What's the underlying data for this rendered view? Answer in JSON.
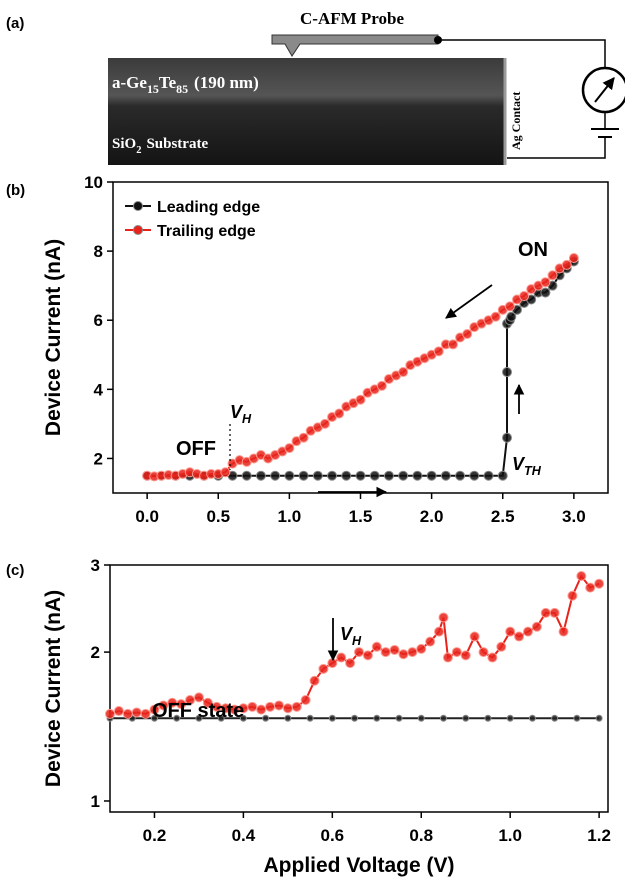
{
  "schematic": {
    "panel_label": "(a)",
    "probe_label": "C-AFM Probe",
    "film_label": [
      "a-Ge",
      "15",
      "Te",
      "85",
      "(190 nm)"
    ],
    "substrate_label": [
      "SiO",
      "2",
      "Substrate"
    ],
    "contact_label": "Ag Contact"
  },
  "chart_data": [
    {
      "type": "line",
      "panel_label": "(b)",
      "y_label": "Device Current (nA)",
      "xlim": [
        -0.24,
        3.24
      ],
      "ylim": [
        1.0,
        10
      ],
      "xticks": [
        {
          "value": 0,
          "label": "0.0"
        },
        0.5,
        {
          "value": 1,
          "label": "1.0"
        },
        1.5,
        {
          "value": 2,
          "label": "2.0"
        },
        2.5,
        {
          "value": 3,
          "label": "3.0"
        }
      ],
      "yticks": [
        2,
        4,
        6,
        8,
        10
      ],
      "legend": "upper left",
      "annotations": {
        "on": "ON",
        "off": "OFF",
        "vh": [
          "V",
          "H"
        ],
        "vth": [
          "V",
          "TH"
        ]
      },
      "series": [
        {
          "name": "Leading edge",
          "color": "#111111",
          "x": [
            0,
            0.1,
            0.2,
            0.3,
            0.4,
            0.5,
            0.6,
            0.7,
            0.8,
            0.9,
            1.0,
            1.1,
            1.2,
            1.3,
            1.4,
            1.5,
            1.6,
            1.7,
            1.8,
            1.9,
            2.0,
            2.1,
            2.2,
            2.3,
            2.4,
            2.5,
            2.53,
            2.53,
            2.53,
            2.55,
            2.56,
            2.6,
            2.65,
            2.7,
            2.75,
            2.8,
            2.85,
            2.9,
            2.95,
            3.0
          ],
          "values": [
            1.5,
            1.5,
            1.5,
            1.5,
            1.5,
            1.5,
            1.5,
            1.5,
            1.5,
            1.5,
            1.5,
            1.5,
            1.5,
            1.5,
            1.5,
            1.5,
            1.5,
            1.5,
            1.5,
            1.5,
            1.5,
            1.5,
            1.5,
            1.5,
            1.5,
            1.5,
            2.6,
            4.5,
            5.9,
            6.0,
            6.1,
            6.3,
            6.5,
            6.6,
            6.8,
            6.8,
            7.0,
            7.3,
            7.5,
            7.7
          ]
        },
        {
          "name": "Trailing edge",
          "color": "#e8231b",
          "x": [
            0,
            0.05,
            0.1,
            0.15,
            0.2,
            0.25,
            0.3,
            0.35,
            0.4,
            0.45,
            0.5,
            0.55,
            0.6,
            0.65,
            0.7,
            0.75,
            0.8,
            0.85,
            0.9,
            0.95,
            1.0,
            1.05,
            1.1,
            1.15,
            1.2,
            1.25,
            1.3,
            1.35,
            1.4,
            1.45,
            1.5,
            1.55,
            1.6,
            1.65,
            1.7,
            1.75,
            1.8,
            1.85,
            1.9,
            1.95,
            2.0,
            2.05,
            2.1,
            2.15,
            2.2,
            2.25,
            2.3,
            2.35,
            2.4,
            2.45,
            2.5,
            2.55,
            2.6,
            2.65,
            2.7,
            2.75,
            2.8,
            2.85,
            2.9,
            2.95,
            3.0
          ],
          "values": [
            1.5,
            1.48,
            1.5,
            1.52,
            1.5,
            1.55,
            1.6,
            1.55,
            1.5,
            1.55,
            1.55,
            1.6,
            1.85,
            1.95,
            1.9,
            2.0,
            2.1,
            2.0,
            2.1,
            2.2,
            2.3,
            2.5,
            2.6,
            2.8,
            2.9,
            3.0,
            3.2,
            3.3,
            3.5,
            3.6,
            3.7,
            3.9,
            4.0,
            4.1,
            4.3,
            4.4,
            4.5,
            4.7,
            4.8,
            4.9,
            5.0,
            5.1,
            5.3,
            5.3,
            5.5,
            5.6,
            5.8,
            5.9,
            6.0,
            6.1,
            6.3,
            6.4,
            6.6,
            6.7,
            6.9,
            7.0,
            7.1,
            7.3,
            7.5,
            7.6,
            7.8
          ]
        }
      ]
    },
    {
      "type": "line",
      "panel_label": "(c)",
      "x_label": "Applied Voltage (V)",
      "y_label": "Device Current (nA)",
      "xlim": [
        0.1,
        1.22
      ],
      "ylim": [
        0.95,
        3.0
      ],
      "ylog": true,
      "xticks": [
        0.2,
        0.4,
        0.6,
        0.8,
        {
          "value": 1,
          "label": "1.0"
        },
        1.2
      ],
      "yticks": [
        1,
        2,
        3
      ],
      "annotations": {
        "off_state": "OFF state",
        "vh": [
          "V",
          "H"
        ]
      },
      "series": [
        {
          "color": "#222222",
          "x": [
            0.1,
            0.15,
            0.2,
            0.25,
            0.3,
            0.35,
            0.4,
            0.45,
            0.5,
            0.55,
            0.6,
            0.65,
            0.7,
            0.75,
            0.8,
            0.85,
            0.9,
            0.95,
            1.0,
            1.05,
            1.1,
            1.15,
            1.2
          ],
          "values": [
            1.47,
            1.47,
            1.47,
            1.47,
            1.47,
            1.47,
            1.47,
            1.47,
            1.47,
            1.47,
            1.47,
            1.47,
            1.47,
            1.47,
            1.47,
            1.47,
            1.47,
            1.47,
            1.47,
            1.47,
            1.47,
            1.47,
            1.47
          ]
        },
        {
          "color": "#e8231b",
          "x": [
            0.1,
            0.12,
            0.14,
            0.16,
            0.18,
            0.2,
            0.22,
            0.24,
            0.26,
            0.28,
            0.3,
            0.32,
            0.34,
            0.36,
            0.38,
            0.4,
            0.42,
            0.44,
            0.46,
            0.48,
            0.5,
            0.52,
            0.54,
            0.56,
            0.58,
            0.6,
            0.62,
            0.64,
            0.66,
            0.68,
            0.7,
            0.72,
            0.74,
            0.76,
            0.78,
            0.8,
            0.82,
            0.84,
            0.85,
            0.86,
            0.88,
            0.9,
            0.92,
            0.94,
            0.96,
            0.98,
            1.0,
            1.02,
            1.04,
            1.06,
            1.08,
            1.1,
            1.12,
            1.14,
            1.16,
            1.18,
            1.2
          ],
          "values": [
            1.5,
            1.52,
            1.5,
            1.51,
            1.5,
            1.53,
            1.56,
            1.58,
            1.57,
            1.6,
            1.62,
            1.58,
            1.55,
            1.54,
            1.53,
            1.54,
            1.55,
            1.53,
            1.55,
            1.56,
            1.54,
            1.55,
            1.6,
            1.75,
            1.85,
            1.9,
            1.95,
            1.9,
            2.0,
            1.97,
            2.05,
            2.0,
            2.02,
            1.98,
            2.0,
            2.03,
            2.1,
            2.2,
            2.35,
            1.95,
            2.0,
            1.97,
            2.15,
            2.0,
            1.95,
            2.05,
            2.2,
            2.15,
            2.2,
            2.25,
            2.4,
            2.4,
            2.2,
            2.6,
            2.85,
            2.7,
            2.75
          ]
        }
      ]
    }
  ]
}
